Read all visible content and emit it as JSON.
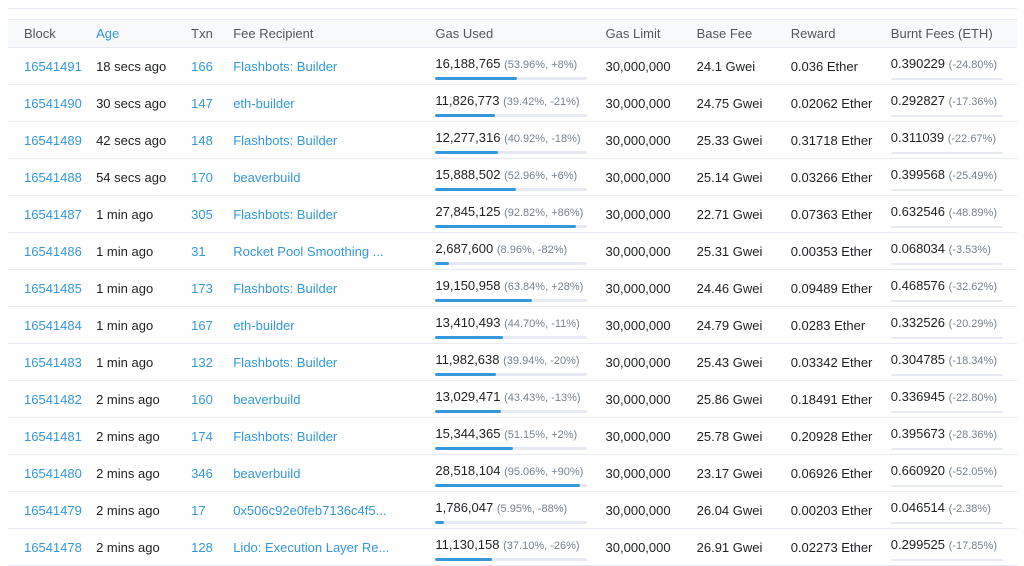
{
  "colors": {
    "link": "#3498db",
    "text": "#1e2022",
    "muted": "#77838f",
    "border": "#e7eaf3",
    "header_bg": "#f8f9fa",
    "header_text": "#53565a",
    "bar_fill": "#3498db",
    "track": "#e7eaf3"
  },
  "table": {
    "columns": [
      "Block",
      "Age",
      "Txn",
      "Fee Recipient",
      "Gas Used",
      "Gas Limit",
      "Base Fee",
      "Reward",
      "Burnt Fees (ETH)"
    ],
    "rows": [
      {
        "block": "16541491",
        "age": "18 secs ago",
        "txn": "166",
        "fee_recipient": "Flashbots: Builder",
        "gas_used": "16,188,765",
        "gas_used_pct": "53.96%",
        "gas_used_change": "+8%",
        "gas_used_pct_value": 53.96,
        "gas_limit": "30,000,000",
        "base_fee": "24.1 Gwei",
        "reward": "0.036 Ether",
        "burnt_fees": "0.390229",
        "burnt_fees_change": "-24.80%"
      },
      {
        "block": "16541490",
        "age": "30 secs ago",
        "txn": "147",
        "fee_recipient": "eth-builder",
        "gas_used": "11,826,773",
        "gas_used_pct": "39.42%",
        "gas_used_change": "-21%",
        "gas_used_pct_value": 39.42,
        "gas_limit": "30,000,000",
        "base_fee": "24.75 Gwei",
        "reward": "0.02062 Ether",
        "burnt_fees": "0.292827",
        "burnt_fees_change": "-17.36%"
      },
      {
        "block": "16541489",
        "age": "42 secs ago",
        "txn": "148",
        "fee_recipient": "Flashbots: Builder",
        "gas_used": "12,277,316",
        "gas_used_pct": "40.92%",
        "gas_used_change": "-18%",
        "gas_used_pct_value": 40.92,
        "gas_limit": "30,000,000",
        "base_fee": "25.33 Gwei",
        "reward": "0.31718 Ether",
        "burnt_fees": "0.311039",
        "burnt_fees_change": "-22.67%"
      },
      {
        "block": "16541488",
        "age": "54 secs ago",
        "txn": "170",
        "fee_recipient": "beaverbuild",
        "gas_used": "15,888,502",
        "gas_used_pct": "52.96%",
        "gas_used_change": "+6%",
        "gas_used_pct_value": 52.96,
        "gas_limit": "30,000,000",
        "base_fee": "25.14 Gwei",
        "reward": "0.03266 Ether",
        "burnt_fees": "0.399568",
        "burnt_fees_change": "-25.49%"
      },
      {
        "block": "16541487",
        "age": "1 min ago",
        "txn": "305",
        "fee_recipient": "Flashbots: Builder",
        "gas_used": "27,845,125",
        "gas_used_pct": "92.82%",
        "gas_used_change": "+86%",
        "gas_used_pct_value": 92.82,
        "gas_limit": "30,000,000",
        "base_fee": "22.71 Gwei",
        "reward": "0.07363 Ether",
        "burnt_fees": "0.632546",
        "burnt_fees_change": "-48.89%"
      },
      {
        "block": "16541486",
        "age": "1 min ago",
        "txn": "31",
        "fee_recipient": "Rocket Pool Smoothing ...",
        "gas_used": "2,687,600",
        "gas_used_pct": "8.96%",
        "gas_used_change": "-82%",
        "gas_used_pct_value": 8.96,
        "gas_limit": "30,000,000",
        "base_fee": "25.31 Gwei",
        "reward": "0.00353 Ether",
        "burnt_fees": "0.068034",
        "burnt_fees_change": "-3.53%"
      },
      {
        "block": "16541485",
        "age": "1 min ago",
        "txn": "173",
        "fee_recipient": "Flashbots: Builder",
        "gas_used": "19,150,958",
        "gas_used_pct": "63.84%",
        "gas_used_change": "+28%",
        "gas_used_pct_value": 63.84,
        "gas_limit": "30,000,000",
        "base_fee": "24.46 Gwei",
        "reward": "0.09489 Ether",
        "burnt_fees": "0.468576",
        "burnt_fees_change": "-32.62%"
      },
      {
        "block": "16541484",
        "age": "1 min ago",
        "txn": "167",
        "fee_recipient": "eth-builder",
        "gas_used": "13,410,493",
        "gas_used_pct": "44.70%",
        "gas_used_change": "-11%",
        "gas_used_pct_value": 44.7,
        "gas_limit": "30,000,000",
        "base_fee": "24.79 Gwei",
        "reward": "0.0283 Ether",
        "burnt_fees": "0.332526",
        "burnt_fees_change": "-20.29%"
      },
      {
        "block": "16541483",
        "age": "1 min ago",
        "txn": "132",
        "fee_recipient": "Flashbots: Builder",
        "gas_used": "11,982,638",
        "gas_used_pct": "39.94%",
        "gas_used_change": "-20%",
        "gas_used_pct_value": 39.94,
        "gas_limit": "30,000,000",
        "base_fee": "25.43 Gwei",
        "reward": "0.03342 Ether",
        "burnt_fees": "0.304785",
        "burnt_fees_change": "-18.34%"
      },
      {
        "block": "16541482",
        "age": "2 mins ago",
        "txn": "160",
        "fee_recipient": "beaverbuild",
        "gas_used": "13,029,471",
        "gas_used_pct": "43.43%",
        "gas_used_change": "-13%",
        "gas_used_pct_value": 43.43,
        "gas_limit": "30,000,000",
        "base_fee": "25.86 Gwei",
        "reward": "0.18491 Ether",
        "burnt_fees": "0.336945",
        "burnt_fees_change": "-22.80%"
      },
      {
        "block": "16541481",
        "age": "2 mins ago",
        "txn": "174",
        "fee_recipient": "Flashbots: Builder",
        "gas_used": "15,344,365",
        "gas_used_pct": "51.15%",
        "gas_used_change": "+2%",
        "gas_used_pct_value": 51.15,
        "gas_limit": "30,000,000",
        "base_fee": "25.78 Gwei",
        "reward": "0.20928 Ether",
        "burnt_fees": "0.395673",
        "burnt_fees_change": "-28.36%"
      },
      {
        "block": "16541480",
        "age": "2 mins ago",
        "txn": "346",
        "fee_recipient": "beaverbuild",
        "gas_used": "28,518,104",
        "gas_used_pct": "95.06%",
        "gas_used_change": "+90%",
        "gas_used_pct_value": 95.06,
        "gas_limit": "30,000,000",
        "base_fee": "23.17 Gwei",
        "reward": "0.06926 Ether",
        "burnt_fees": "0.660920",
        "burnt_fees_change": "-52.05%"
      },
      {
        "block": "16541479",
        "age": "2 mins ago",
        "txn": "17",
        "fee_recipient": "0x506c92e0feb7136c4f5...",
        "gas_used": "1,786,047",
        "gas_used_pct": "5.95%",
        "gas_used_change": "-88%",
        "gas_used_pct_value": 5.95,
        "gas_limit": "30,000,000",
        "base_fee": "26.04 Gwei",
        "reward": "0.00203 Ether",
        "burnt_fees": "0.046514",
        "burnt_fees_change": "-2.38%"
      },
      {
        "block": "16541478",
        "age": "2 mins ago",
        "txn": "128",
        "fee_recipient": "Lido: Execution Layer Re...",
        "gas_used": "11,130,158",
        "gas_used_pct": "37.10%",
        "gas_used_change": "-26%",
        "gas_used_pct_value": 37.1,
        "gas_limit": "30,000,000",
        "base_fee": "26.91 Gwei",
        "reward": "0.02273 Ether",
        "burnt_fees": "0.299525",
        "burnt_fees_change": "-17.85%"
      }
    ]
  }
}
